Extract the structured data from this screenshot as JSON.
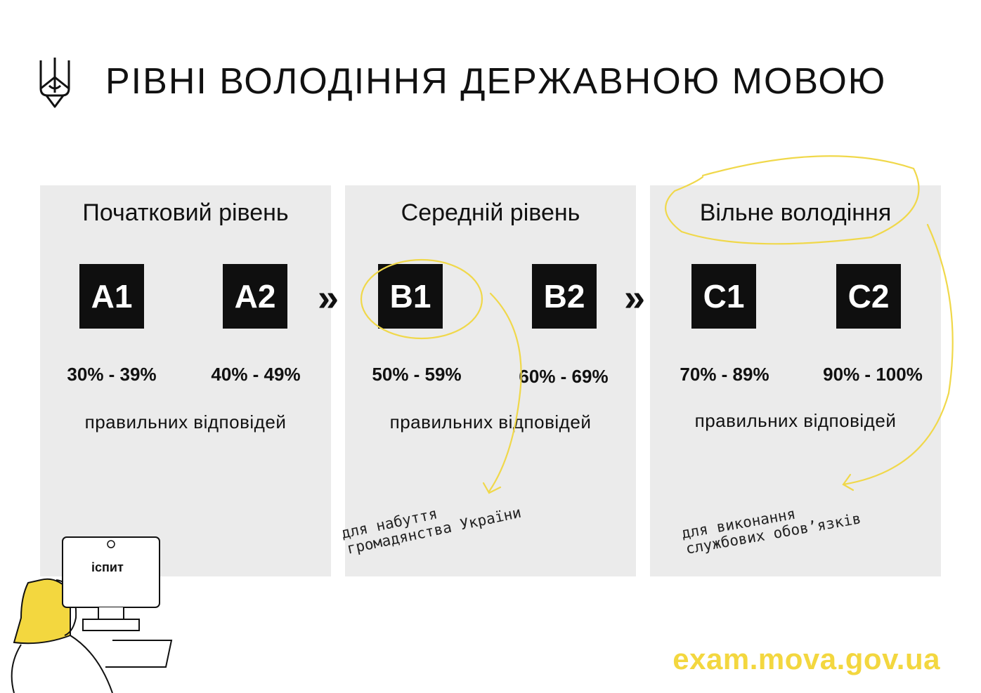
{
  "title": "РІВНІ ВОЛОДІННЯ ДЕРЖАВНОЮ МОВОЮ",
  "panels": [
    {
      "title": "Початковий рівень",
      "levels": [
        "A1",
        "A2"
      ],
      "ranges": [
        "30% - 39%",
        "40% - 49%"
      ],
      "note": "правильних відповідей"
    },
    {
      "title": "Середній рівень",
      "levels": [
        "B1",
        "B2"
      ],
      "ranges": [
        "50% - 59%",
        "60% - 69%"
      ],
      "note": "правильних відповідей"
    },
    {
      "title": "Вільне володіння",
      "levels": [
        "C1",
        "C2"
      ],
      "ranges": [
        "70% - 89%",
        "90% - 100%"
      ],
      "note": "правильних відповідей"
    }
  ],
  "arrows": [
    "»",
    "»"
  ],
  "annotations": {
    "b1_line1": "для набуття",
    "b1_line2": "громадянства України",
    "c1_line1": "для виконання",
    "c1_line2": "службових обов’язків"
  },
  "monitor_label": "іспит",
  "url": "exam.mova.gov.ua",
  "colors": {
    "accent": "#f3d73f",
    "panel": "#ebebeb",
    "badge": "#0f0f0f"
  }
}
